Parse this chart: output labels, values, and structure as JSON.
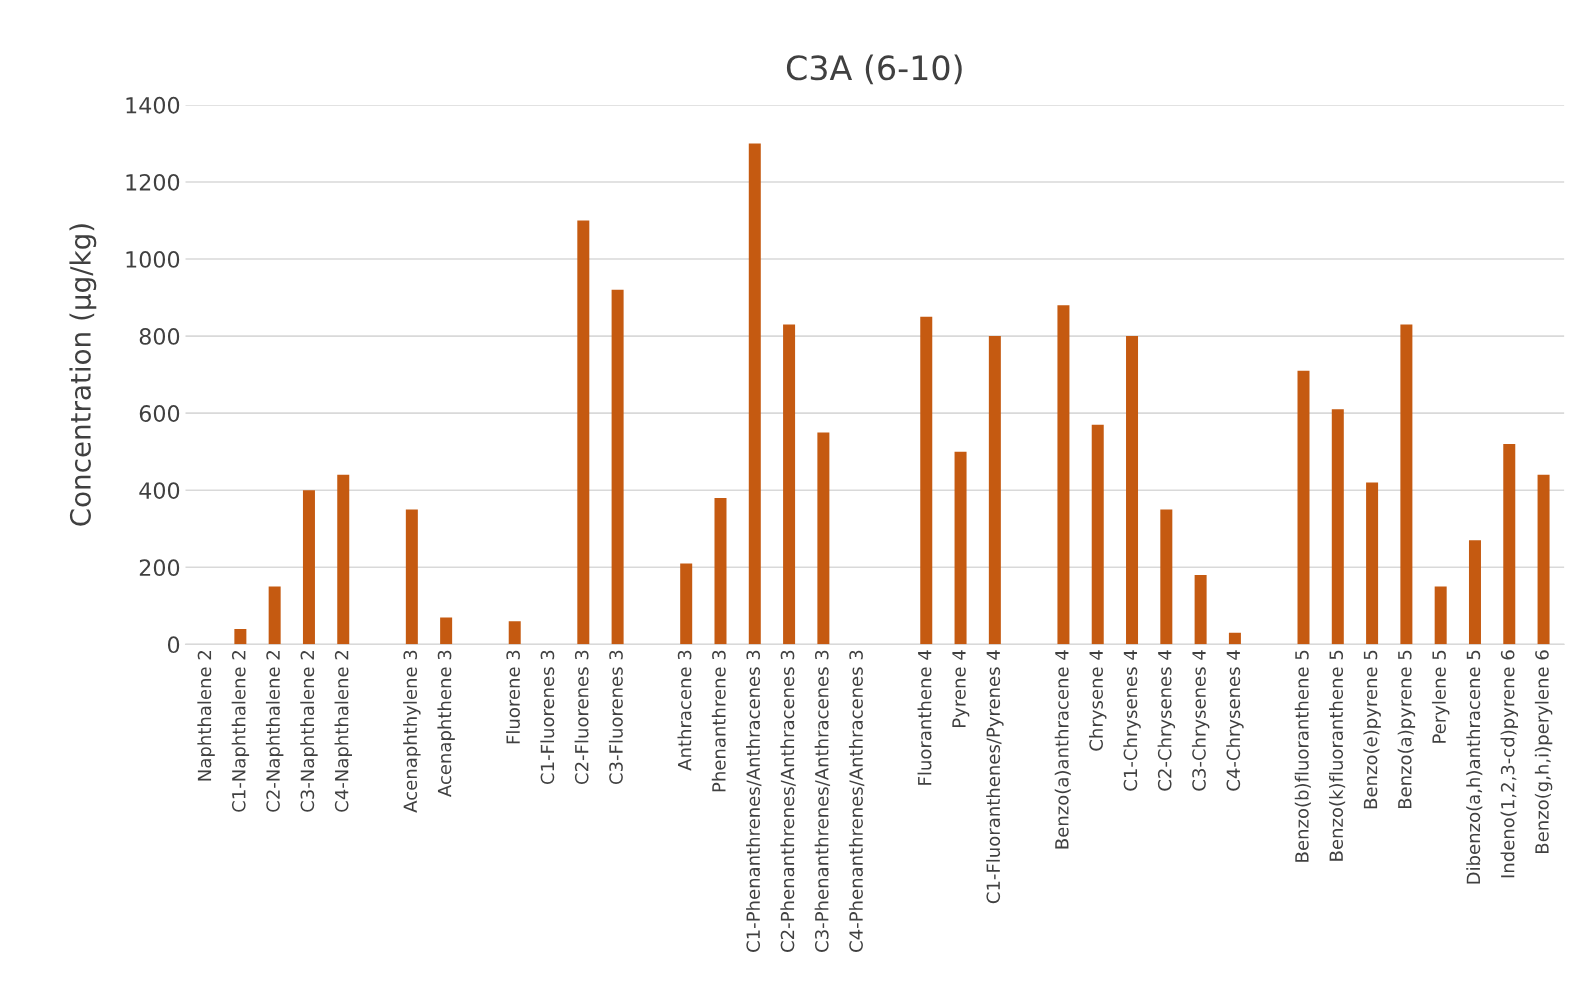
{
  "chart_data": {
    "type": "bar",
    "title": "C3A (6-10)",
    "ylabel": "Concentration (µg/kg)",
    "categories": [
      "Naphthalene 2",
      "C1-Naphthalene 2",
      "C2-Naphthalene 2",
      "C3-Naphthalene 2",
      "C4-Naphthalene 2",
      null,
      "Acenaphthylene 3",
      "Acenaphthene 3",
      null,
      "Fluorene 3",
      "C1-Fluorenes 3",
      "C2-Fluorenes 3",
      "C3-Fluorenes 3",
      null,
      "Anthracene 3",
      "Phenanthrene 3",
      "C1-Phenanthrenes/Anthracenes 3",
      "C2-Phenanthrenes/Anthracenes 3",
      "C3-Phenanthrenes/Anthracenes 3",
      "C4-Phenanthrenes/Anthracenes 3",
      null,
      "Fluoranthene 4",
      "Pyrene 4",
      "C1-Fluoranthenes/Pyrenes 4",
      null,
      "Benzo(a)anthracene 4",
      "Chrysene 4",
      "C1-Chrysenes 4",
      "C2-Chrysenes 4",
      "C3-Chrysenes 4",
      "C4-Chrysenes 4",
      null,
      "Benzo(b)fluoranthene 5",
      "Benzo(k)fluoranthene 5",
      "Benzo(e)pyrene 5",
      "Benzo(a)pyrene 5",
      "Perylene 5",
      "Dibenzo(a,h)anthracene 5",
      "Indeno(1,2,3-cd)pyrene 6",
      "Benzo(g,h,i)perylene 6"
    ],
    "values": [
      0,
      40,
      150,
      400,
      440,
      null,
      350,
      70,
      null,
      60,
      0,
      1100,
      920,
      null,
      210,
      380,
      1300,
      830,
      550,
      0,
      null,
      850,
      500,
      800,
      null,
      880,
      570,
      800,
      350,
      180,
      30,
      null,
      710,
      610,
      420,
      830,
      150,
      270,
      520,
      440
    ],
    "color": "#c55a11",
    "ylim": [
      0,
      1400
    ],
    "yticks": [
      0,
      200,
      400,
      600,
      800,
      1000,
      1200,
      1400
    ],
    "grid": "y"
  }
}
